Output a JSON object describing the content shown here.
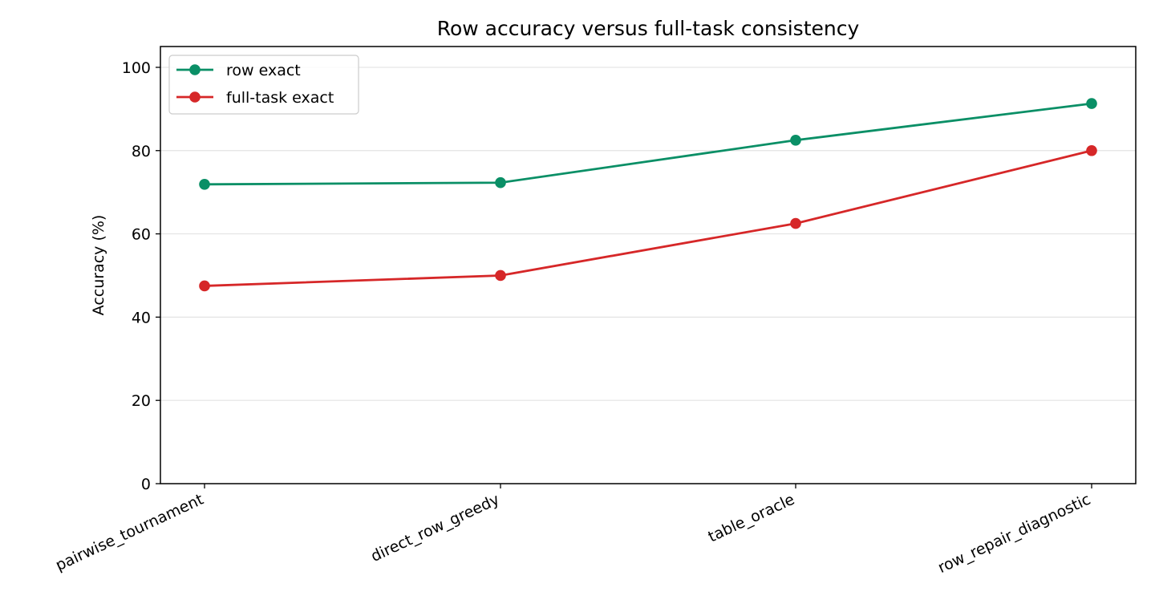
{
  "chart_data": {
    "type": "line",
    "title": "Row accuracy versus full-task consistency",
    "xlabel": "",
    "ylabel": "Accuracy (%)",
    "categories": [
      "pairwise_tournament",
      "direct_row_greedy",
      "table_oracle",
      "row_repair_diagnostic"
    ],
    "series": [
      {
        "name": "row exact",
        "color": "#0a8f66",
        "values": [
          71.9,
          72.3,
          82.5,
          91.3
        ]
      },
      {
        "name": "full-task exact",
        "color": "#d62728",
        "values": [
          47.5,
          50.0,
          62.5,
          80.0
        ]
      }
    ],
    "ylim": [
      0,
      105
    ],
    "yticks": [
      0,
      20,
      40,
      60,
      80,
      100
    ],
    "grid": "horizontal",
    "legend_position": "top-left"
  }
}
